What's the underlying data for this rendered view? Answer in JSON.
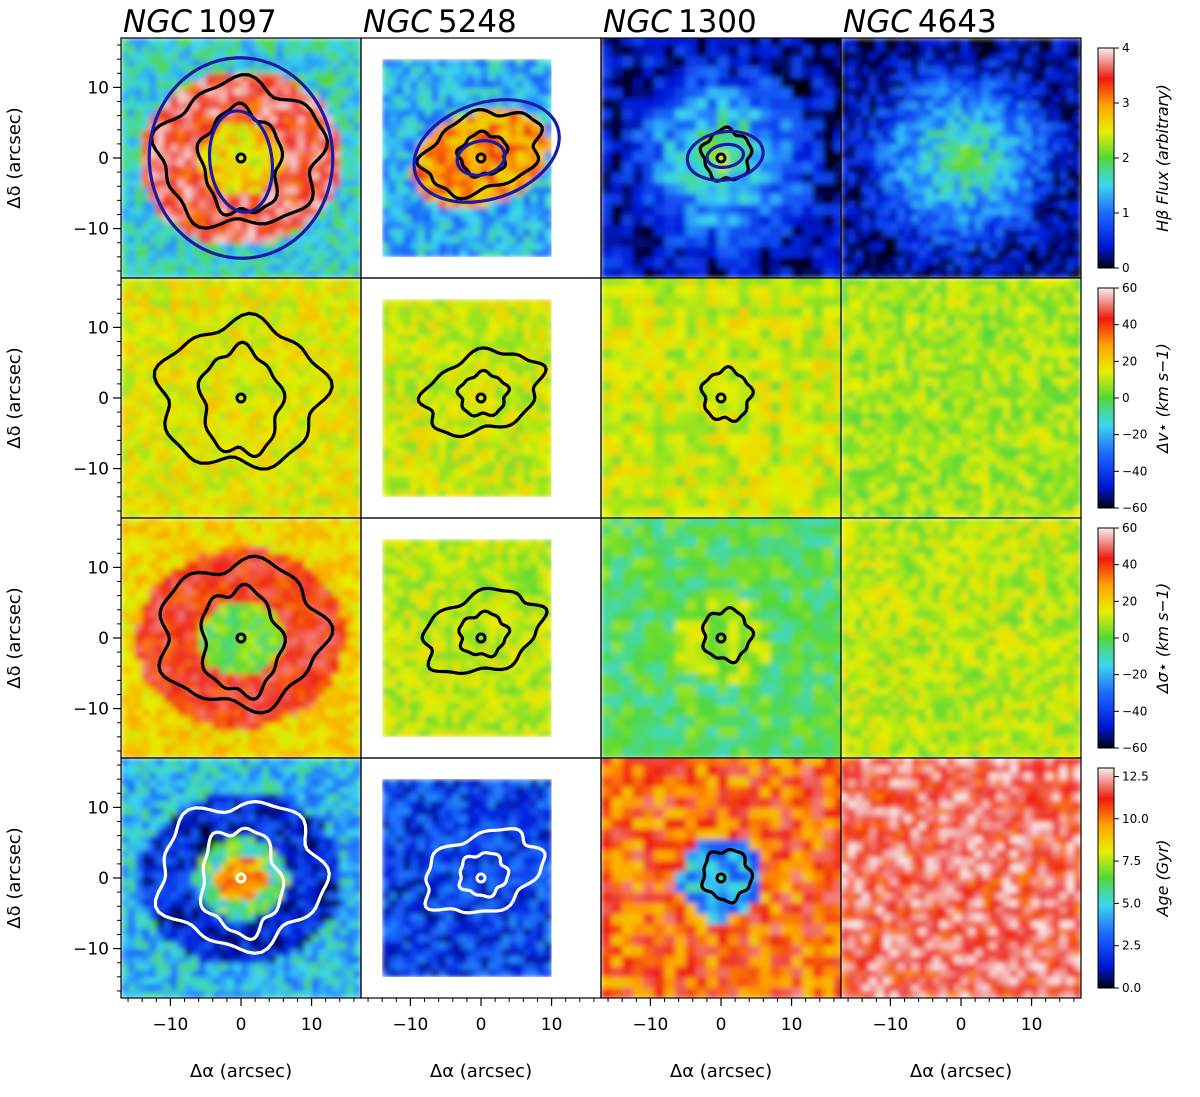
{
  "chart_data": {
    "type": "heatmap",
    "grid": "4x4 panels",
    "columns": [
      {
        "name_prefix": "NGC",
        "name_number": "1097"
      },
      {
        "name_prefix": "NGC",
        "name_number": "5248"
      },
      {
        "name_prefix": "NGC",
        "name_number": "1300"
      },
      {
        "name_prefix": "NGC",
        "name_number": "4643"
      }
    ],
    "rows": [
      {
        "quantity": "flux",
        "colorbar_label": "Hβ Flux (arbitrary)",
        "colormap": "jet-like (black-blue-cyan-green-yellow-red-white)",
        "range": [
          0,
          4
        ],
        "ticks": [
          "0",
          "1",
          "2",
          "3",
          "4"
        ]
      },
      {
        "quantity": "velocity_residual",
        "colorbar_label": "Δv⋆ (km s−1)",
        "colormap": "jet-like",
        "range": [
          -60,
          60
        ],
        "ticks": [
          "−60",
          "−40",
          "−20",
          "0",
          "20",
          "40",
          "60"
        ]
      },
      {
        "quantity": "dispersion_residual",
        "colorbar_label": "Δσ⋆ (km s−1)",
        "colormap": "jet-like",
        "range": [
          -60,
          60
        ],
        "ticks": [
          "−60",
          "−40",
          "−20",
          "0",
          "20",
          "40",
          "60"
        ]
      },
      {
        "quantity": "age",
        "colorbar_label": "Age (Gyr)",
        "colormap": "jet-like",
        "range": [
          0,
          13
        ],
        "ticks": [
          "0.0",
          "2.5",
          "5.0",
          "7.5",
          "10.0",
          "12.5"
        ]
      }
    ],
    "x_axis": {
      "label": "Δα (arcsec)",
      "range": [
        -17,
        17
      ],
      "ticks": [
        "−10",
        "0",
        "10"
      ],
      "tick_values": [
        -10,
        0,
        10
      ]
    },
    "y_axis": {
      "label": "Δδ (arcsec)",
      "range": [
        -17,
        17
      ],
      "ticks": [
        "−10",
        "0",
        "10"
      ],
      "tick_values": [
        -10,
        0,
        10
      ]
    },
    "typical_values": {
      "flux": {
        "NGC 1097": "ring 3-4, center ~2.5, outside ~1.5",
        "NGC 5248": "ring ~3, outside ~1.5",
        "NGC 1300": "center ~2, outside ~0.5",
        "NGC 4643": "center ~2, outside ~0.3"
      },
      "velocity_residual": {
        "all": "near 0 to +20"
      },
      "dispersion_residual": {
        "NGC 1097": "ring ~+40, inside ~0",
        "NGC 5248": "~+10",
        "NGC 1300": "~0",
        "NGC 4643": "~+10"
      },
      "age": {
        "NGC 1097": "ring ~1.5 Gyr, center ~10 Gyr",
        "NGC 5248": "~2 Gyr",
        "NGC 1300": "center ~4 Gyr, outside ~11 Gyr",
        "NGC 4643": "~11.5 Gyr"
      }
    }
  }
}
